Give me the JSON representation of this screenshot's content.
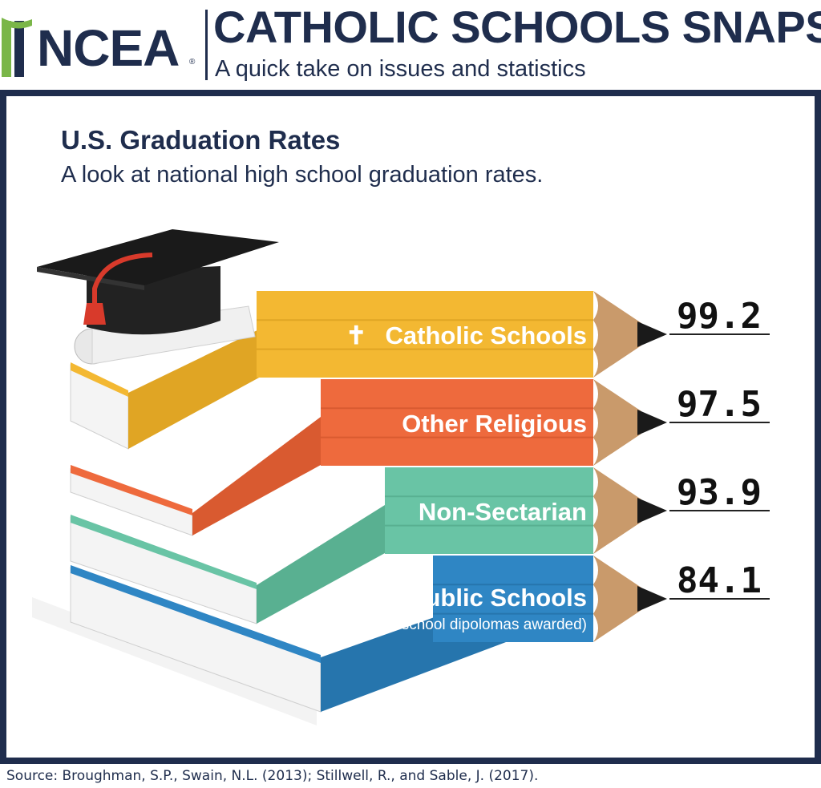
{
  "header": {
    "logo_text": "NCEA",
    "logo_reg": "®",
    "title": "CATHOLIC SCHOOLS SNAPS",
    "subtitle": "A quick take on issues and statistics"
  },
  "colors": {
    "navy": "#1f2d4d",
    "catholic": "#f3b832",
    "other_religious": "#ee6a3d",
    "non_sectarian": "#69c4a5",
    "public": "#2f86c4",
    "wood": "#c99a6b",
    "lead": "#1a1a1a"
  },
  "chart_data": {
    "type": "bar",
    "orientation": "horizontal",
    "title": "U.S. Graduation Rates",
    "subtitle": "A look at national high school graduation rates.",
    "categories": [
      "Catholic Schools",
      "Other Religious",
      "Non-Sectarian",
      "Public Schools"
    ],
    "values": [
      99.2,
      97.5,
      93.9,
      84.1
    ],
    "value_labels": [
      "99.2",
      "97.5",
      "93.9",
      "84.1"
    ],
    "notes": [
      "",
      "",
      "",
      "(actual high school dipolomas awarded)"
    ],
    "icons": [
      "cross-icon",
      "",
      "",
      ""
    ],
    "cross_glyph": "✝"
  },
  "source": "Source:  Broughman, S.P., Swain, N.L. (2013); Stillwell, R., and Sable, J. (2017)."
}
